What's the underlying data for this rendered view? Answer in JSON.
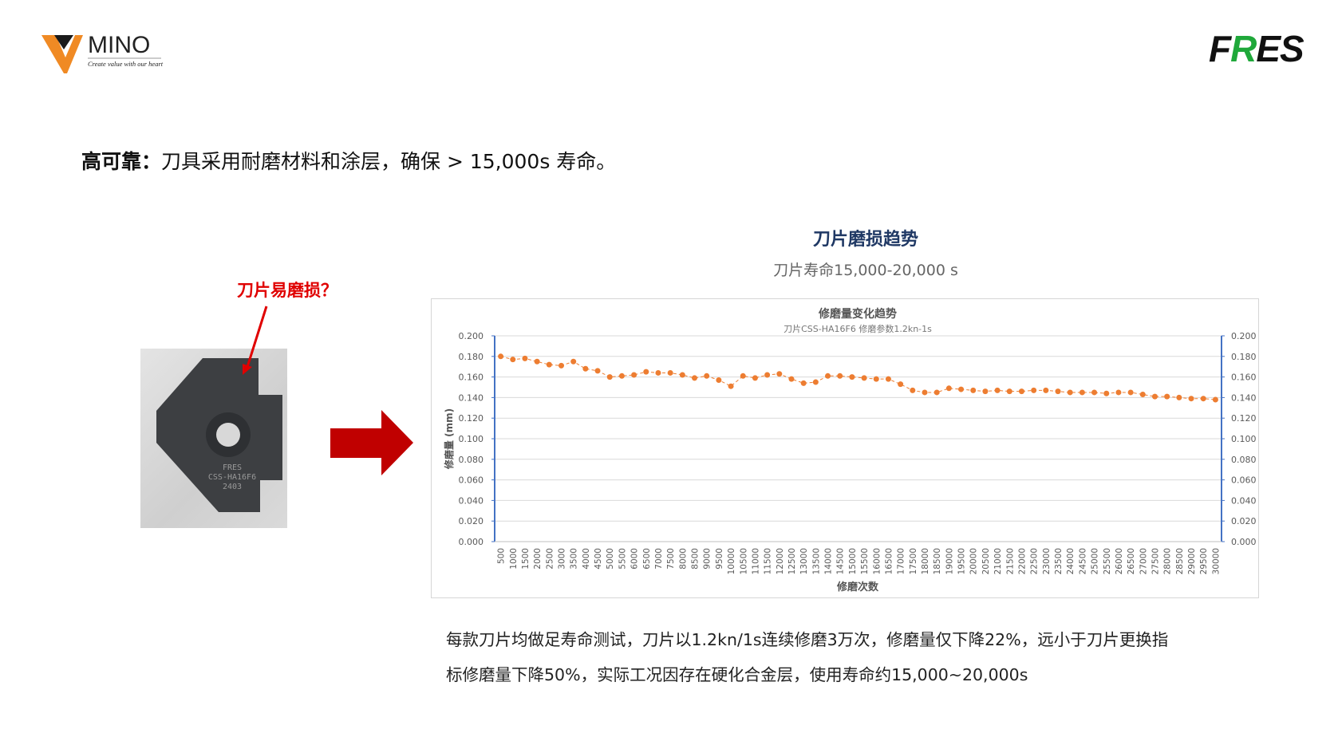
{
  "logos": {
    "left_brand": "MINO",
    "left_tagline": "Create value with our heart",
    "right_brand": "FRES"
  },
  "headline": {
    "bold": "高可靠：",
    "text": "刀具采用耐磨材料和涂层，确保 > 15,000s 寿命。"
  },
  "chart_heading": "刀片磨损趋势",
  "chart_subheading": "刀片寿命15,000-20,000 s",
  "callout_label": "刀片易磨损？",
  "photo_label": {
    "line1": "FRES",
    "line2": "CSS-HA16F6",
    "line3": "2403"
  },
  "colors": {
    "accent_red": "#e00000",
    "arrow_red": "#c00000",
    "series": "#ed7d31",
    "axis": "#4472c4",
    "heading": "#1f3864"
  },
  "chart_data": {
    "type": "line",
    "title": "修磨量变化趋势",
    "subtitle": "刀片CSS-HA16F6  修磨参数1.2kn-1s",
    "xlabel": "修磨次数",
    "ylabel": "修磨量 (mm)",
    "ylim": [
      0,
      0.2
    ],
    "yticks": [
      "0.000",
      "0.020",
      "0.040",
      "0.060",
      "0.080",
      "0.100",
      "0.120",
      "0.140",
      "0.160",
      "0.180",
      "0.200"
    ],
    "secondary_axis": true,
    "grid": true,
    "legend": "none",
    "x": [
      500,
      1000,
      1500,
      2000,
      2500,
      3000,
      3500,
      4000,
      4500,
      5000,
      5500,
      6000,
      6500,
      7000,
      7500,
      8000,
      8500,
      9000,
      9500,
      10000,
      10500,
      11000,
      11500,
      12000,
      12500,
      13000,
      13500,
      14000,
      14500,
      15000,
      15500,
      16000,
      16500,
      17000,
      17500,
      18000,
      18500,
      19000,
      19500,
      20000,
      20500,
      21000,
      21500,
      22000,
      22500,
      23000,
      23500,
      24000,
      24500,
      25000,
      25500,
      26000,
      26500,
      27000,
      27500,
      28000,
      28500,
      29000,
      29500,
      30000
    ],
    "values": [
      0.18,
      0.177,
      0.178,
      0.175,
      0.172,
      0.171,
      0.175,
      0.168,
      0.166,
      0.16,
      0.161,
      0.162,
      0.165,
      0.164,
      0.164,
      0.162,
      0.159,
      0.161,
      0.157,
      0.151,
      0.161,
      0.159,
      0.162,
      0.163,
      0.158,
      0.154,
      0.155,
      0.161,
      0.161,
      0.16,
      0.159,
      0.158,
      0.158,
      0.153,
      0.147,
      0.145,
      0.145,
      0.149,
      0.148,
      0.147,
      0.146,
      0.147,
      0.146,
      0.146,
      0.147,
      0.147,
      0.146,
      0.145,
      0.145,
      0.145,
      0.144,
      0.145,
      0.145,
      0.143,
      0.141,
      0.141,
      0.14,
      0.139,
      0.139,
      0.138
    ]
  },
  "paragraph": {
    "line1": "每款刀片均做足寿命测试，刀片以1.2kn/1s连续修磨3万次，修磨量仅下降22%，远小于刀片更换指",
    "line2": "标修磨量下降50%，实际工况因存在硬化合金层，使用寿命约15,000~20,000s"
  }
}
